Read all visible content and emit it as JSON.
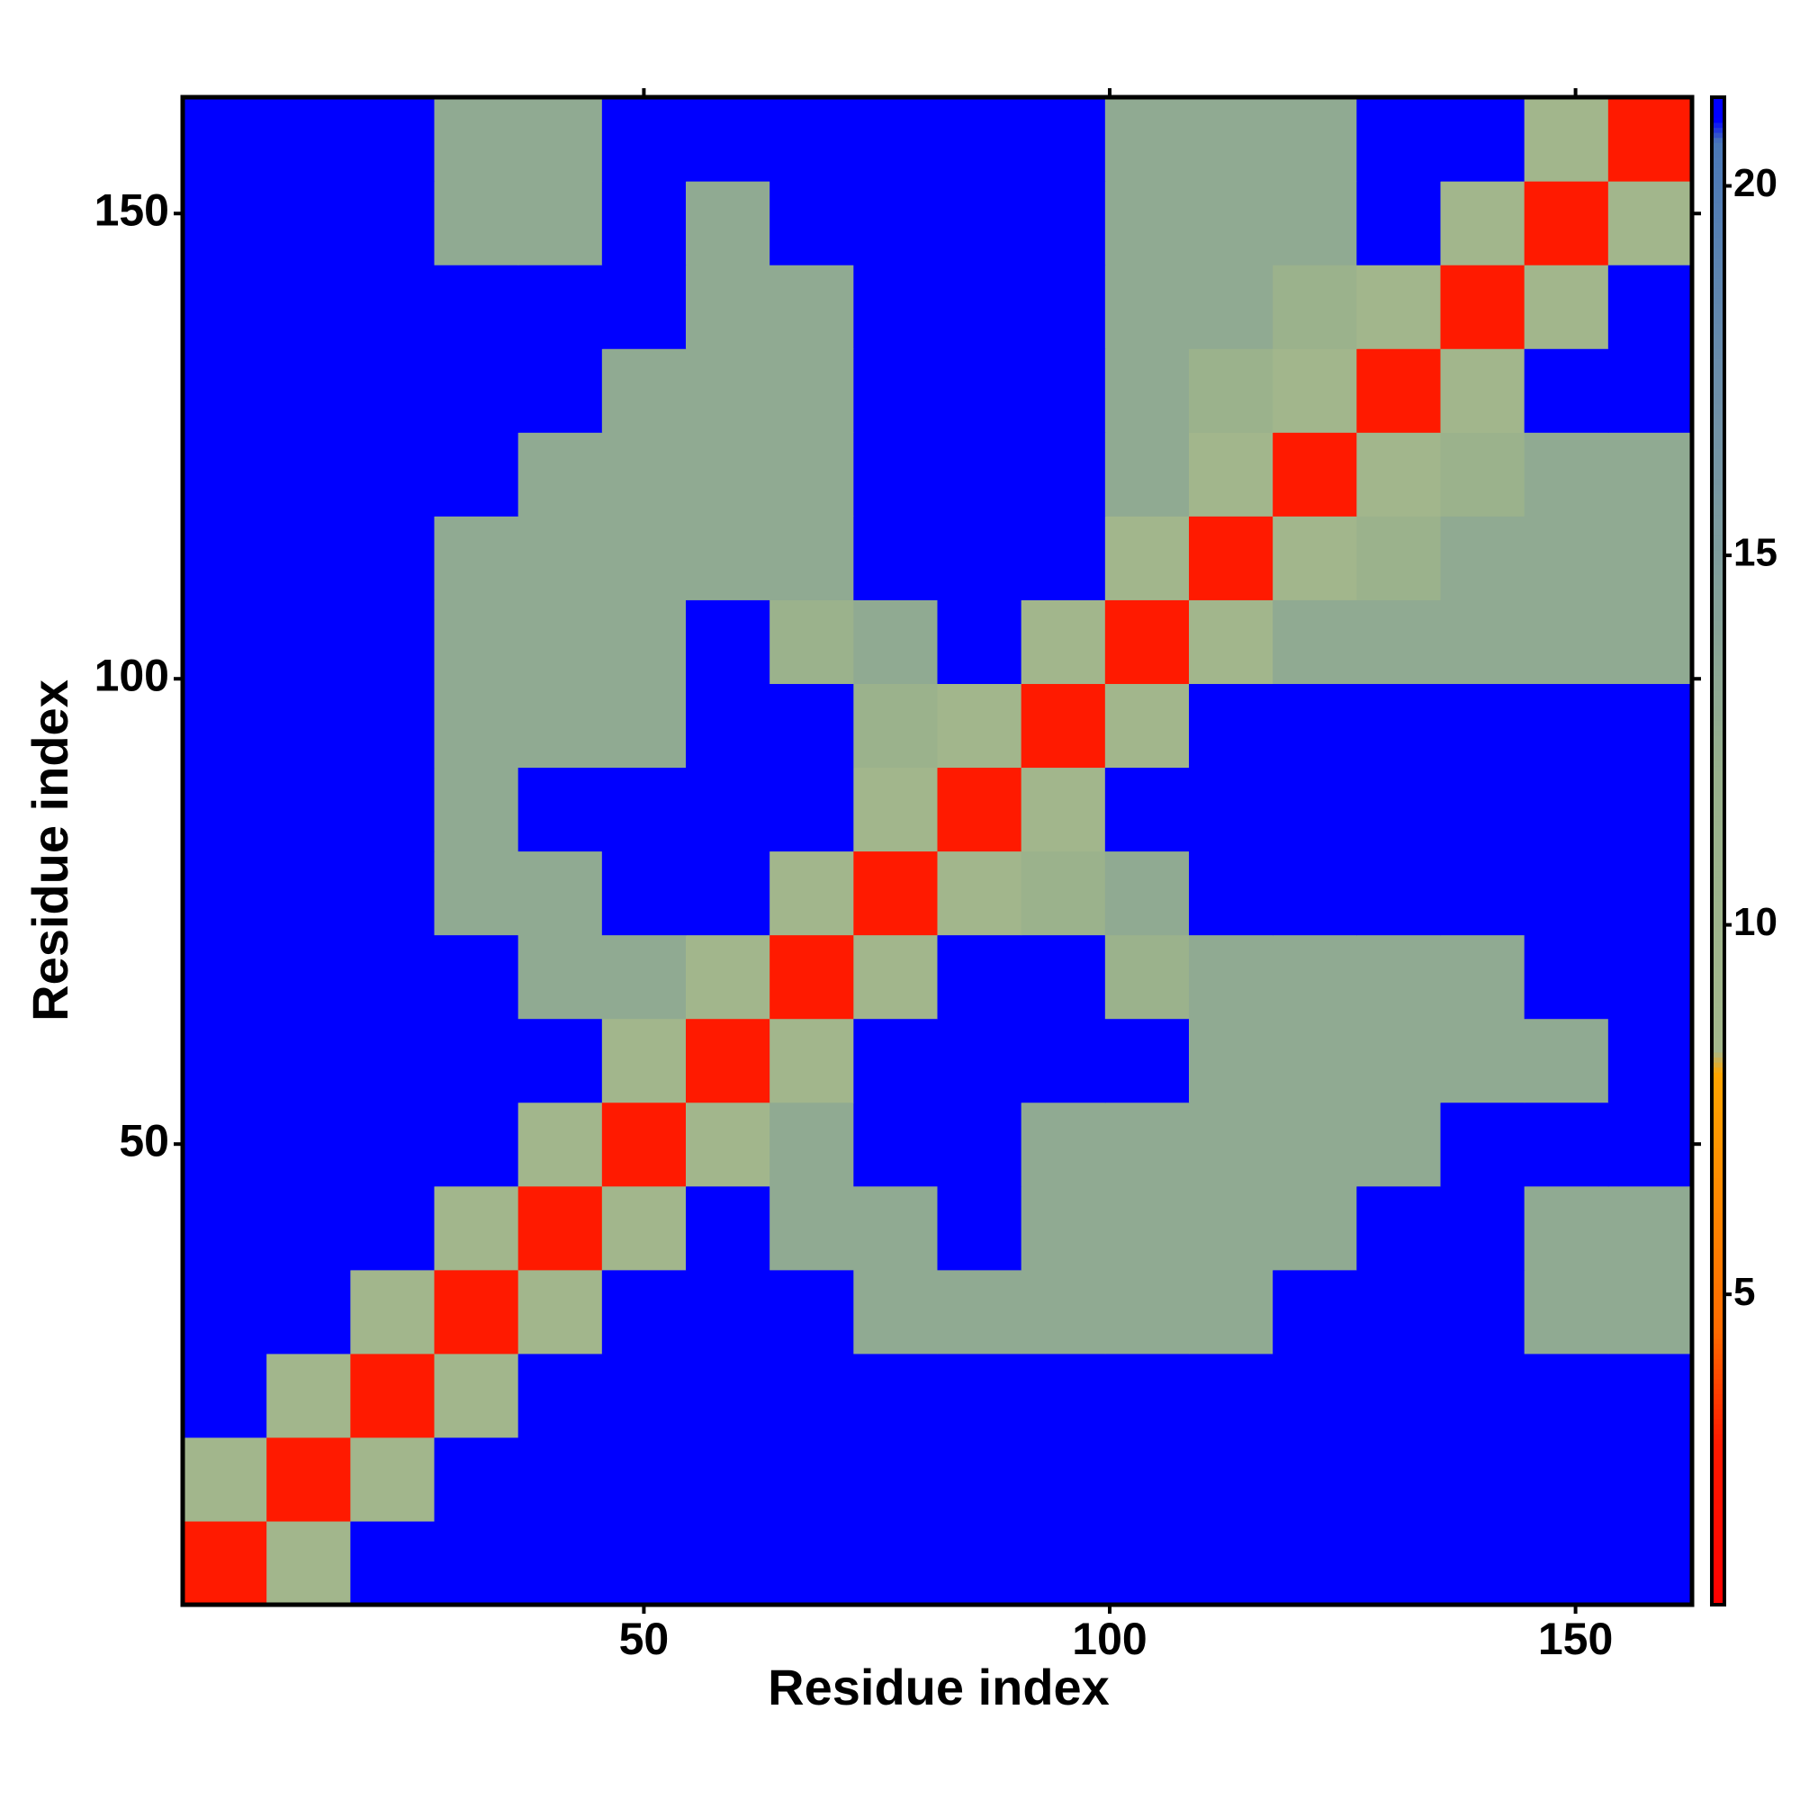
{
  "chart_data": {
    "type": "heatmap",
    "x_label": "Residue index",
    "y_label": "Residue index",
    "x": [
      5,
      14,
      23,
      32,
      41,
      50,
      59,
      68,
      77,
      86,
      95,
      104,
      113,
      122,
      131,
      140,
      149,
      158
    ],
    "y": [
      5,
      14,
      23,
      32,
      41,
      50,
      59,
      68,
      77,
      86,
      95,
      104,
      113,
      122,
      131,
      140,
      149,
      158
    ],
    "values": [
      [
        3,
        9,
        21,
        21,
        21,
        21,
        21,
        21,
        21,
        21,
        21,
        21,
        21,
        21,
        21,
        21,
        21,
        21
      ],
      [
        9,
        3,
        9,
        21,
        21,
        21,
        21,
        21,
        21,
        21,
        21,
        21,
        21,
        21,
        21,
        21,
        21,
        21
      ],
      [
        21,
        9,
        3,
        9,
        21,
        21,
        21,
        21,
        21,
        21,
        21,
        21,
        21,
        21,
        21,
        21,
        21,
        21
      ],
      [
        21,
        21,
        9,
        3,
        9,
        21,
        21,
        21,
        13,
        13,
        13,
        13,
        13,
        21,
        21,
        21,
        13,
        13
      ],
      [
        21,
        21,
        21,
        9,
        3,
        9,
        21,
        13,
        13,
        21,
        13,
        13,
        13,
        13,
        21,
        21,
        13,
        13
      ],
      [
        21,
        21,
        21,
        21,
        9,
        3,
        9,
        13,
        21,
        21,
        13,
        13,
        13,
        13,
        13,
        21,
        21,
        21
      ],
      [
        21,
        21,
        21,
        21,
        21,
        9,
        3,
        9,
        21,
        21,
        21,
        21,
        13,
        13,
        13,
        13,
        13,
        21
      ],
      [
        21,
        21,
        21,
        21,
        13,
        13,
        9,
        3,
        9,
        21,
        21,
        11,
        13,
        13,
        13,
        13,
        21,
        21
      ],
      [
        21,
        21,
        21,
        13,
        13,
        21,
        21,
        9,
        3,
        9,
        11,
        13,
        21,
        21,
        21,
        21,
        21,
        21
      ],
      [
        21,
        21,
        21,
        13,
        21,
        21,
        21,
        21,
        9,
        3,
        9,
        21,
        21,
        21,
        21,
        21,
        21,
        21
      ],
      [
        21,
        21,
        21,
        13,
        13,
        13,
        21,
        21,
        11,
        9,
        3,
        9,
        21,
        21,
        21,
        21,
        21,
        21
      ],
      [
        21,
        21,
        21,
        13,
        13,
        13,
        21,
        11,
        13,
        21,
        9,
        3,
        9,
        13,
        13,
        13,
        13,
        13
      ],
      [
        21,
        21,
        21,
        13,
        13,
        13,
        13,
        13,
        21,
        21,
        21,
        9,
        3,
        9,
        11,
        13,
        13,
        13
      ],
      [
        21,
        21,
        21,
        21,
        13,
        13,
        13,
        13,
        21,
        21,
        21,
        13,
        9,
        3,
        9,
        11,
        13,
        13
      ],
      [
        21,
        21,
        21,
        21,
        21,
        13,
        13,
        13,
        21,
        21,
        21,
        13,
        11,
        9,
        3,
        9,
        21,
        21
      ],
      [
        21,
        21,
        21,
        21,
        21,
        21,
        13,
        13,
        21,
        21,
        21,
        13,
        13,
        11,
        9,
        3,
        9,
        21
      ],
      [
        21,
        21,
        21,
        13,
        13,
        21,
        13,
        21,
        21,
        21,
        21,
        13,
        13,
        13,
        21,
        9,
        3,
        9
      ],
      [
        21,
        21,
        21,
        13,
        13,
        21,
        21,
        21,
        21,
        21,
        21,
        13,
        13,
        13,
        21,
        21,
        9,
        3
      ]
    ],
    "xlim": [
      0.5,
      162.5
    ],
    "ylim": [
      0.5,
      162.5
    ],
    "xticks": [
      50,
      100,
      150
    ],
    "yticks": [
      50,
      100,
      150
    ],
    "clim": [
      0.8,
      21.2
    ],
    "colorbar_ticks": [
      5,
      10,
      15,
      20
    ],
    "colorscale": [
      [
        0.8,
        "#ff0000"
      ],
      [
        3,
        "#ff1a00"
      ],
      [
        4.5,
        "#ff6a00"
      ],
      [
        8,
        "#ffa500"
      ],
      [
        8.3,
        "#a4b88c"
      ],
      [
        12,
        "#98b08c"
      ],
      [
        17,
        "#6f90a8"
      ],
      [
        20.6,
        "#4a78b8"
      ],
      [
        20.9,
        "#0000ff"
      ],
      [
        21.2,
        "#0000ff"
      ]
    ]
  }
}
